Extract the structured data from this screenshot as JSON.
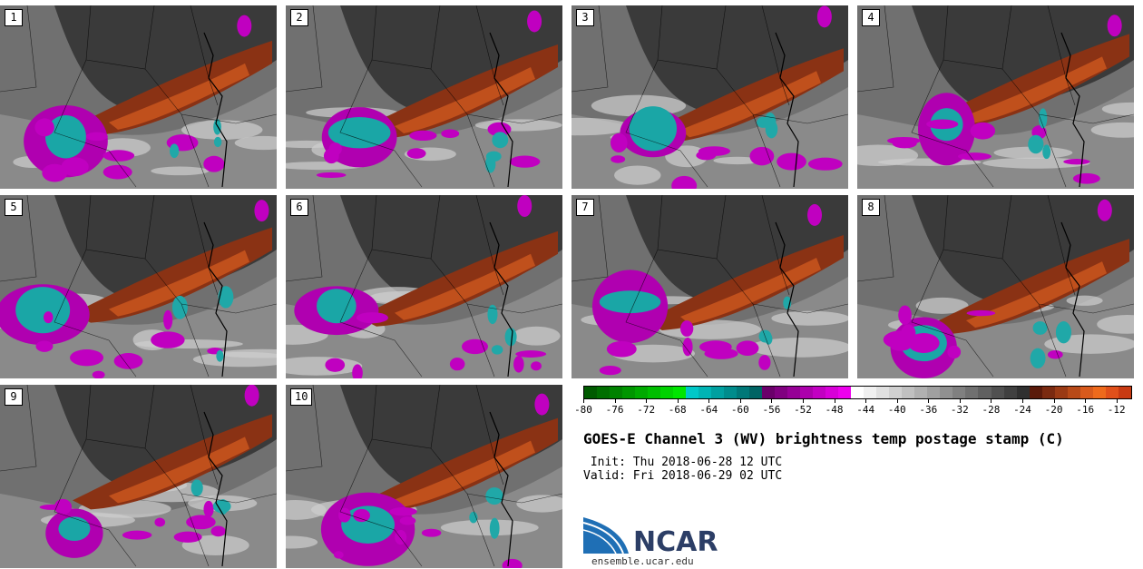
{
  "panels": [
    {
      "label": "1"
    },
    {
      "label": "2"
    },
    {
      "label": "3"
    },
    {
      "label": "4"
    },
    {
      "label": "5"
    },
    {
      "label": "6"
    },
    {
      "label": "7"
    },
    {
      "label": "8"
    },
    {
      "label": "9"
    },
    {
      "label": "10"
    }
  ],
  "colorbar": {
    "ticks": [
      "-80",
      "-76",
      "-72",
      "-68",
      "-64",
      "-60",
      "-56",
      "-52",
      "-48",
      "-44",
      "-40",
      "-36",
      "-32",
      "-28",
      "-24",
      "-20",
      "-16",
      "-12"
    ],
    "colors": [
      "#005a00",
      "#006e00",
      "#008200",
      "#009600",
      "#00aa00",
      "#00be00",
      "#00d200",
      "#00e600",
      "#00c8c8",
      "#00b4b4",
      "#00a0a0",
      "#008c8c",
      "#007878",
      "#006464",
      "#6a006a",
      "#800080",
      "#960096",
      "#ac00ac",
      "#c200c2",
      "#d800d8",
      "#ee00ee",
      "#ffffff",
      "#f0f0f0",
      "#e0e0e0",
      "#d0d0d0",
      "#c0c0c0",
      "#b0b0b0",
      "#a0a0a0",
      "#909090",
      "#808080",
      "#707070",
      "#606060",
      "#505050",
      "#404040",
      "#303030",
      "#5a1a0a",
      "#7a2a10",
      "#9a3a14",
      "#b84a18",
      "#d85a1c",
      "#ee6a1c",
      "#e0501a",
      "#c83a12"
    ]
  },
  "title": "GOES-E Channel 3 (WV) brightness temp postage stamp (C)",
  "init_line": " Init: Thu 2018-06-28 12 UTC",
  "valid_line": "Valid: Fri 2018-06-29 02 UTC",
  "logo": {
    "text": "NCAR",
    "url": "ensemble.ucar.edu"
  }
}
